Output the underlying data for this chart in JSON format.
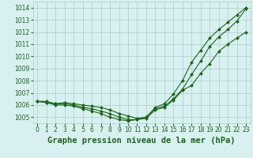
{
  "title": "Graphe pression niveau de la mer (hPa)",
  "x_values": [
    0,
    1,
    2,
    3,
    4,
    5,
    6,
    7,
    8,
    9,
    10,
    11,
    12,
    13,
    14,
    15,
    16,
    17,
    18,
    19,
    20,
    21,
    22,
    23
  ],
  "series": [
    [
      1006.3,
      1006.2,
      1006.0,
      1006.0,
      1005.9,
      1005.7,
      1005.5,
      1005.3,
      1005.0,
      1004.8,
      1004.7,
      1004.8,
      1004.9,
      1005.6,
      1005.8,
      1006.4,
      1007.2,
      1007.6,
      1008.6,
      1009.4,
      1010.4,
      1011.0,
      1011.5,
      1012.0
    ],
    [
      1006.3,
      1006.2,
      1006.1,
      1006.1,
      1006.0,
      1005.8,
      1005.7,
      1005.5,
      1005.3,
      1005.0,
      1004.8,
      1004.8,
      1005.0,
      1005.7,
      1005.9,
      1006.5,
      1007.3,
      1008.5,
      1009.6,
      1010.8,
      1011.6,
      1012.2,
      1012.9,
      1013.9
    ],
    [
      1006.3,
      1006.3,
      1006.1,
      1006.2,
      1006.1,
      1006.0,
      1005.9,
      1005.8,
      1005.6,
      1005.3,
      1005.1,
      1004.9,
      1005.0,
      1005.8,
      1006.1,
      1006.9,
      1008.0,
      1009.5,
      1010.5,
      1011.5,
      1012.2,
      1012.8,
      1013.4,
      1014.0
    ]
  ],
  "ylim": [
    1004.5,
    1014.5
  ],
  "yticks": [
    1005,
    1006,
    1007,
    1008,
    1009,
    1010,
    1011,
    1012,
    1013,
    1014
  ],
  "xlim": [
    -0.5,
    23.5
  ],
  "line_color": "#1a6618",
  "marker": "D",
  "markersize": 2.0,
  "linewidth": 0.8,
  "bg_color": "#d8f0f0",
  "grid_color": "#aacccc",
  "xlabel_color": "#1a6618",
  "title_fontsize": 7.5,
  "tick_fontsize": 5.5
}
